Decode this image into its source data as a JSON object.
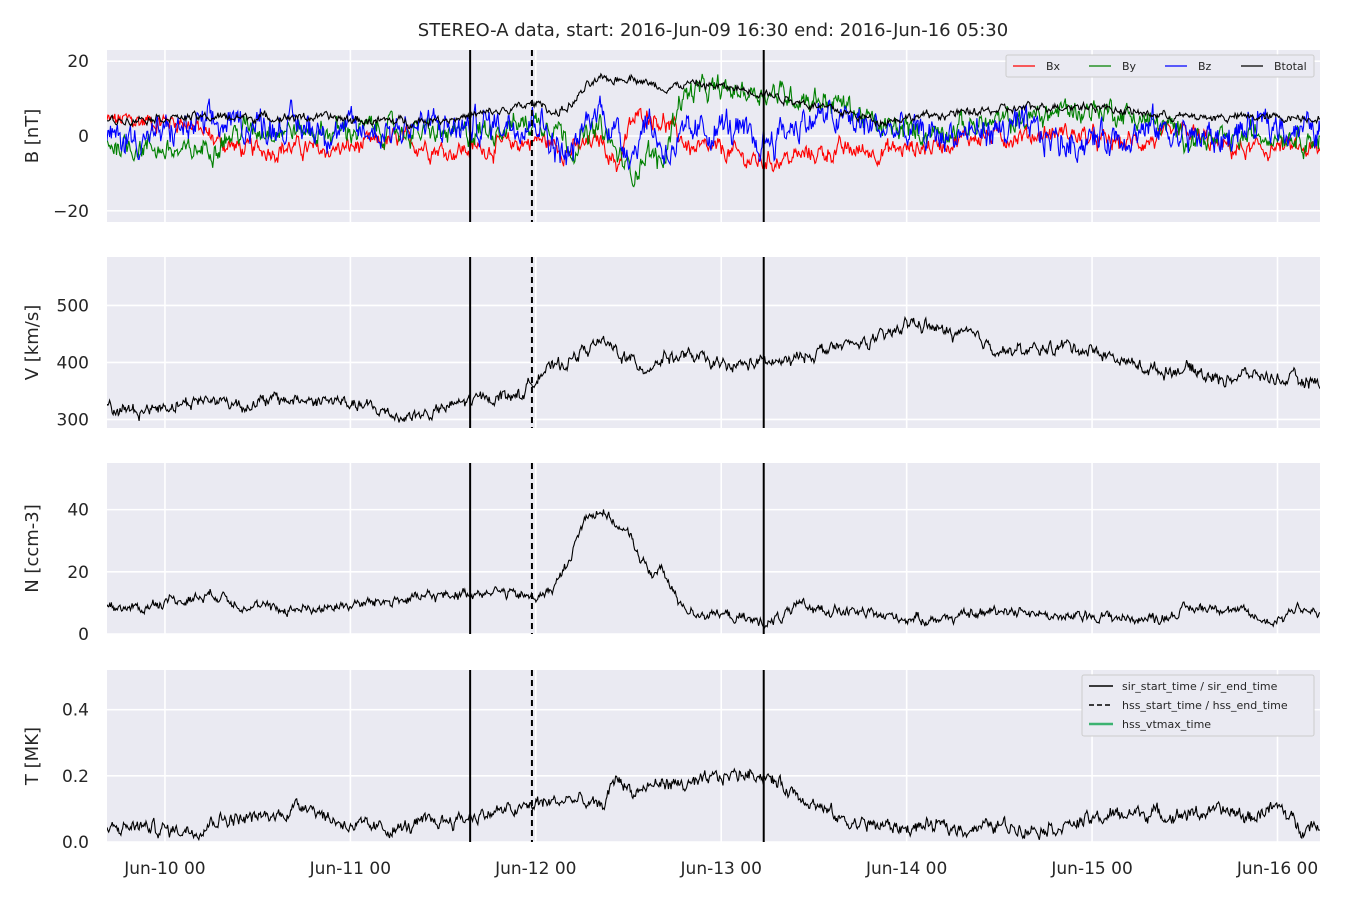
{
  "figure": {
    "title": "STEREO-A data, start: 2016-Jun-09 16:30  end: 2016-Jun-16 05:30",
    "background": "#eaeaf2",
    "grid_color": "#ffffff"
  },
  "chart_data": [
    {
      "type": "line",
      "ylabel": "B [nT]",
      "xlim": [
        "2016-06-09 16:30",
        "2016-06-16 05:30"
      ],
      "ylim": [
        -23,
        23
      ],
      "yticks": [
        -20,
        0,
        20
      ],
      "ytick_labels": [
        "−20",
        "0",
        "20"
      ],
      "xticks": [
        "2016-06-10 00:00",
        "2016-06-11 00:00",
        "2016-06-12 00:00",
        "2016-06-13 00:00",
        "2016-06-14 00:00",
        "2016-06-15 00:00",
        "2016-06-16 00:00"
      ],
      "grid": true,
      "legend": {
        "placement": "top-right",
        "orientation": "horizontal"
      },
      "vlines": [
        {
          "time": "2016-06-11 15:30",
          "style": "solid",
          "group": "sir"
        },
        {
          "time": "2016-06-11 23:30",
          "style": "dashed",
          "group": "hss"
        },
        {
          "time": "2016-06-13 05:30",
          "style": "solid",
          "group": "sir"
        }
      ],
      "series": [
        {
          "name": "Bx",
          "color": "#ff0000",
          "kx": [
            0,
            10,
            14,
            18,
            24,
            28,
            32,
            38,
            44,
            50,
            56,
            60,
            64,
            66,
            68,
            70,
            72,
            76,
            80,
            84,
            88,
            94,
            100,
            106,
            112,
            118,
            124,
            130,
            136,
            140,
            144,
            148,
            152,
            156,
            157
          ],
          "ky": [
            4,
            4,
            -1,
            -4,
            -3,
            -4,
            -3,
            -1,
            -4,
            -3,
            -1,
            -4,
            -1,
            -8,
            4,
            6,
            4,
            -4,
            -4,
            -7,
            -6,
            -4,
            -4,
            -3,
            0,
            0,
            1,
            -2,
            -1,
            1,
            -3,
            -4,
            -3,
            -4,
            -5
          ],
          "noise": 1.8
        },
        {
          "name": "By",
          "color": "#008000",
          "kx": [
            0,
            6,
            10,
            14,
            18,
            22,
            28,
            34,
            40,
            46,
            52,
            58,
            60,
            64,
            66,
            68,
            70,
            72,
            74,
            76,
            80,
            84,
            88,
            92,
            96,
            100,
            106,
            112,
            118,
            124,
            130,
            136,
            140,
            144,
            148,
            152,
            157
          ],
          "ky": [
            -2,
            -3,
            -5,
            -2,
            2,
            2,
            1,
            2,
            1,
            0,
            3,
            4,
            -3,
            2,
            -5,
            -10,
            -4,
            -8,
            10,
            12,
            12,
            12,
            11,
            10,
            8,
            2,
            1,
            3,
            4,
            7,
            7,
            3,
            0,
            -2,
            0,
            1,
            -1
          ],
          "noise": 2.2
        },
        {
          "name": "Bz",
          "color": "#0000ff",
          "kx": [
            0,
            6,
            10,
            16,
            22,
            28,
            34,
            40,
            46,
            52,
            56,
            58,
            60,
            62,
            64,
            66,
            68,
            70,
            72,
            76,
            80,
            84,
            88,
            92,
            96,
            100,
            106,
            112,
            118,
            124,
            130,
            136,
            140,
            144,
            148,
            152,
            157
          ],
          "ky": [
            -1,
            0,
            2,
            3,
            3,
            2,
            1,
            3,
            2,
            4,
            5,
            -3,
            -6,
            3,
            8,
            0,
            -4,
            5,
            -4,
            0,
            3,
            -3,
            2,
            5,
            4,
            2,
            0,
            1,
            2,
            -2,
            0,
            2,
            0,
            -1,
            2,
            3,
            1
          ],
          "noise": 3.0
        },
        {
          "name": "Btotal",
          "color": "#000000",
          "kx": [
            0,
            6,
            10,
            16,
            22,
            28,
            34,
            40,
            46,
            52,
            56,
            58,
            60,
            62,
            64,
            66,
            68,
            70,
            72,
            76,
            80,
            84,
            88,
            92,
            96,
            100,
            104,
            110,
            116,
            122,
            128,
            134,
            140,
            146,
            152,
            157
          ],
          "ky": [
            4,
            5,
            5,
            5,
            5,
            5,
            4,
            4,
            5,
            7,
            9,
            6,
            8,
            13,
            15,
            15,
            16,
            14,
            13,
            14,
            13,
            12,
            10,
            8,
            6,
            4,
            5,
            6,
            7,
            8,
            8,
            6,
            5,
            5,
            5,
            5
          ],
          "noise": 0.8
        }
      ]
    },
    {
      "type": "line",
      "ylabel": "V [km/s]",
      "xlim": [
        "2016-06-09 16:30",
        "2016-06-16 05:30"
      ],
      "ylim": [
        285,
        585
      ],
      "yticks": [
        300,
        400,
        500
      ],
      "ytick_labels": [
        "300",
        "400",
        "500"
      ],
      "grid": true,
      "series": [
        {
          "name": "",
          "color": "#000000",
          "kx": [
            0,
            4,
            8,
            10,
            14,
            18,
            22,
            26,
            30,
            34,
            38,
            42,
            46,
            50,
            54,
            56,
            58,
            60,
            62,
            64,
            66,
            68,
            70,
            72,
            76,
            80,
            84,
            88,
            92,
            96,
            100,
            104,
            106,
            108,
            112,
            116,
            120,
            124,
            128,
            132,
            136,
            140,
            144,
            148,
            152,
            157
          ],
          "ky": [
            320,
            315,
            325,
            330,
            335,
            325,
            335,
            333,
            332,
            320,
            305,
            310,
            330,
            340,
            345,
            385,
            390,
            405,
            425,
            435,
            420,
            400,
            390,
            410,
            410,
            390,
            400,
            400,
            420,
            430,
            440,
            470,
            465,
            455,
            445,
            420,
            420,
            430,
            420,
            400,
            385,
            390,
            370,
            380,
            370,
            365
          ],
          "noise": 8
        }
      ]
    },
    {
      "type": "line",
      "ylabel": "N [ccm-3]",
      "xlim": [
        "2016-06-09 16:30",
        "2016-06-16 05:30"
      ],
      "ylim": [
        0,
        55
      ],
      "yticks": [
        0,
        20,
        40
      ],
      "ytick_labels": [
        "0",
        "20",
        "40"
      ],
      "grid": true,
      "series": [
        {
          "name": "",
          "color": "#000000",
          "kx": [
            0,
            4,
            8,
            10,
            14,
            18,
            22,
            26,
            30,
            34,
            38,
            42,
            46,
            50,
            54,
            56,
            58,
            60,
            62,
            64,
            66,
            68,
            70,
            72,
            74,
            76,
            80,
            84,
            86,
            90,
            96,
            100,
            104,
            108,
            112,
            116,
            120,
            124,
            128,
            132,
            136,
            140,
            144,
            148,
            150,
            152,
            154,
            157
          ],
          "ky": [
            9,
            8,
            11,
            11,
            13,
            9,
            8,
            8,
            9,
            10,
            11,
            12,
            13,
            14,
            12,
            12,
            15,
            25,
            38,
            40,
            35,
            30,
            20,
            20,
            10,
            7,
            6,
            4,
            4,
            9,
            7,
            6,
            5,
            5,
            6,
            8,
            7,
            5,
            6,
            5,
            5,
            8,
            9,
            6,
            4,
            5,
            9,
            6
          ],
          "noise": 1.2
        }
      ]
    },
    {
      "type": "line",
      "ylabel": "T [MK]",
      "xlim": [
        "2016-06-09 16:30",
        "2016-06-16 05:30"
      ],
      "ylim": [
        0,
        0.52
      ],
      "yticks": [
        0.0,
        0.2,
        0.4
      ],
      "ytick_labels": [
        "0.0",
        "0.2",
        "0.4"
      ],
      "xtick_labels": [
        "Jun-10 00",
        "Jun-11 00",
        "Jun-12 00",
        "Jun-13 00",
        "Jun-14 00",
        "Jun-15 00",
        "Jun-16 00"
      ],
      "grid": true,
      "legend": {
        "placement": "top-right",
        "entries": [
          {
            "name": "sir_start_time / sir_end_time",
            "style": "solid",
            "color": "#000000"
          },
          {
            "name": "hss_start_time / hss_end_time",
            "style": "dashed",
            "color": "#000000"
          },
          {
            "name": "hss_vtmax_time",
            "style": "solid",
            "color": "#3cb371"
          }
        ]
      },
      "series": [
        {
          "name": "",
          "color": "#000000",
          "kx": [
            0,
            4,
            8,
            12,
            14,
            18,
            22,
            26,
            28,
            30,
            34,
            38,
            42,
            46,
            50,
            54,
            56,
            58,
            60,
            62,
            64,
            66,
            68,
            72,
            76,
            80,
            84,
            90,
            94,
            96,
            100,
            104,
            106,
            110,
            116,
            120,
            124,
            128,
            130,
            134,
            138,
            142,
            146,
            148,
            150,
            152,
            154,
            157
          ],
          "ky": [
            0.035,
            0.05,
            0.035,
            0.04,
            0.07,
            0.07,
            0.08,
            0.12,
            0.08,
            0.06,
            0.04,
            0.04,
            0.06,
            0.07,
            0.09,
            0.1,
            0.12,
            0.12,
            0.13,
            0.12,
            0.1,
            0.2,
            0.15,
            0.18,
            0.17,
            0.2,
            0.21,
            0.14,
            0.08,
            0.06,
            0.05,
            0.04,
            0.05,
            0.04,
            0.05,
            0.04,
            0.05,
            0.07,
            0.08,
            0.09,
            0.08,
            0.09,
            0.09,
            0.07,
            0.1,
            0.1,
            0.05,
            0.05
          ],
          "noise": 0.015
        }
      ]
    }
  ]
}
